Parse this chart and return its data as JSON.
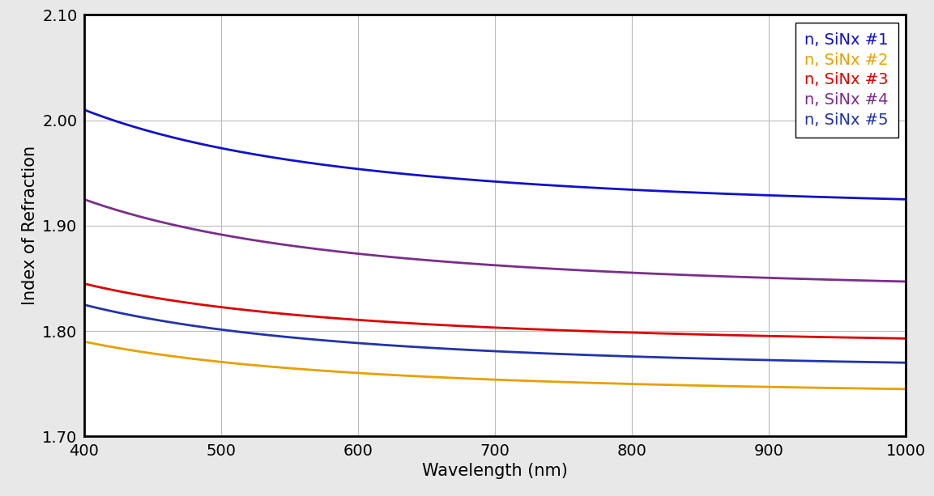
{
  "title": "",
  "xlabel": "Wavelength (nm)",
  "ylabel": "Index of Refraction",
  "xlim": [
    400,
    1000
  ],
  "ylim": [
    1.7,
    2.1
  ],
  "xticks": [
    400,
    500,
    600,
    700,
    800,
    900,
    1000
  ],
  "yticks": [
    1.7,
    1.8,
    1.9,
    2.0,
    2.1
  ],
  "series": [
    {
      "label": "n, SiNx #1",
      "color": "#1010CC",
      "n400": 2.01,
      "n1000": 1.925
    },
    {
      "label": "n, SiNx #2",
      "color": "#E8A000",
      "n400": 1.79,
      "n1000": 1.745
    },
    {
      "label": "n, SiNx #3",
      "color": "#DD0000",
      "n400": 1.845,
      "n1000": 1.793
    },
    {
      "label": "n, SiNx #4",
      "color": "#7B2D8B",
      "n400": 1.925,
      "n1000": 1.847
    },
    {
      "label": "n, SiNx #5",
      "color": "#2233AA",
      "n400": 1.825,
      "n1000": 1.77
    }
  ],
  "legend_loc": "upper right",
  "grid_color": "#BBBBBB",
  "linewidth": 2.0,
  "figsize": [
    11.53,
    6.13
  ],
  "dpi": 100,
  "figure_facecolor": "#E8E8E8",
  "axes_facecolor": "#FFFFFF",
  "tick_fontsize": 14,
  "label_fontsize": 15,
  "legend_fontsize": 14
}
